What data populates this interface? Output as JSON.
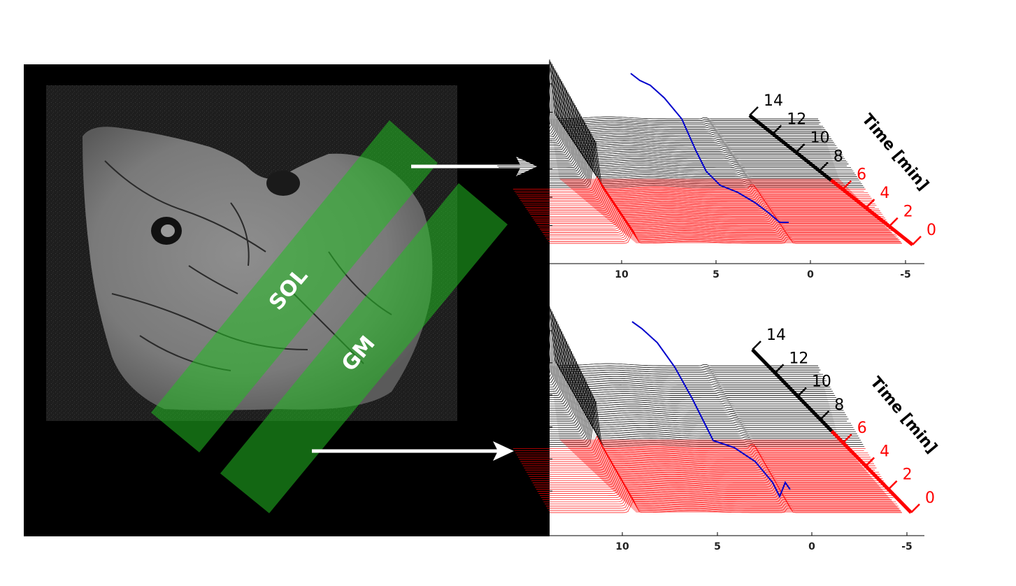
{
  "mri": {
    "regions": [
      {
        "name": "SOL",
        "color": "#22bb22"
      },
      {
        "name": "GM",
        "color": "#22bb22"
      }
    ]
  },
  "panels": [
    {
      "ppm_ticks": [
        "10",
        "5",
        "0",
        "-5"
      ],
      "time_axis_label": "Time [min]",
      "time_ticks": [
        "14",
        "12",
        "10",
        "8",
        "6",
        "4",
        "2",
        "0"
      ],
      "time_tick_colors": [
        "#000000",
        "#000000",
        "#000000",
        "#000000",
        "#ff0000",
        "#ff0000",
        "#ff0000",
        "#ff0000"
      ]
    },
    {
      "ppm_ticks": [
        "10",
        "5",
        "0",
        "-5"
      ],
      "time_axis_label": "Time [min]",
      "time_ticks": [
        "14",
        "12",
        "10",
        "8",
        "6",
        "4",
        "2",
        "0"
      ],
      "time_tick_colors": [
        "#000000",
        "#000000",
        "#000000",
        "#000000",
        "#ff0000",
        "#ff0000",
        "#ff0000",
        "#ff0000"
      ]
    }
  ],
  "colors": {
    "pre_exercise": "#ff0000",
    "post_exercise": "#000000",
    "highlight_trace": "#0000cc",
    "region_fill": "#22bb22",
    "arrow": "#ffffff"
  }
}
